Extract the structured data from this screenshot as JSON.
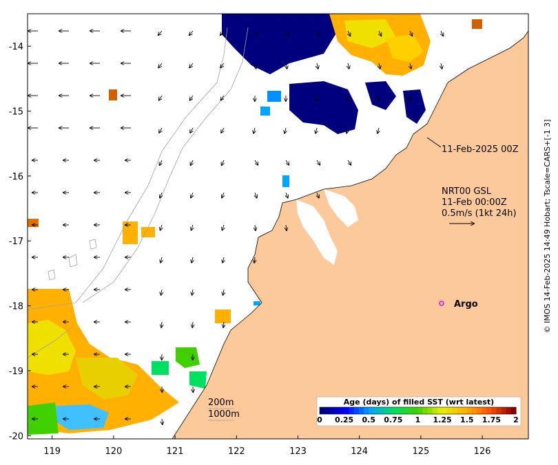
{
  "map": {
    "lon_ticks": [
      "119",
      "120",
      "121",
      "122",
      "123",
      "124",
      "125",
      "126"
    ],
    "lat_ticks": [
      "-14",
      "-15",
      "-16",
      "-17",
      "-18",
      "-19",
      "-20"
    ],
    "lon_range": [
      118.6,
      126.75
    ],
    "lat_range": [
      -20.05,
      -13.5
    ],
    "colors": {
      "land": "#fcc99b",
      "ocean": "#ffffff",
      "arrow": "#000000",
      "argo_marker": "#ee00ee",
      "contour": "#a0a0a0"
    }
  },
  "annotations": {
    "time_label": "11-Feb-2025 00Z",
    "product": "NRT00 GSL",
    "datetime": "11-Feb 00:00Z",
    "scale": "0.5m/s (1kt 24h)",
    "argo_label": "Argo",
    "depth_200": "200m",
    "depth_1000": "1000m",
    "credit": "© IMOS 14-Feb-2025 14:49 Hobart; Tscale=CARS+[-1 3]"
  },
  "colorbar": {
    "title": "Age (days) of filled SST (wrt latest)",
    "tick_labels": [
      "0",
      "0.25",
      "0.5",
      "0.75",
      "1",
      "1.25",
      "1.5",
      "1.75",
      "2"
    ],
    "stops": [
      "#00007f",
      "#0000ff",
      "#00a5ff",
      "#00e060",
      "#40d000",
      "#e8f000",
      "#ffb000",
      "#ff5000",
      "#8b0000"
    ]
  }
}
